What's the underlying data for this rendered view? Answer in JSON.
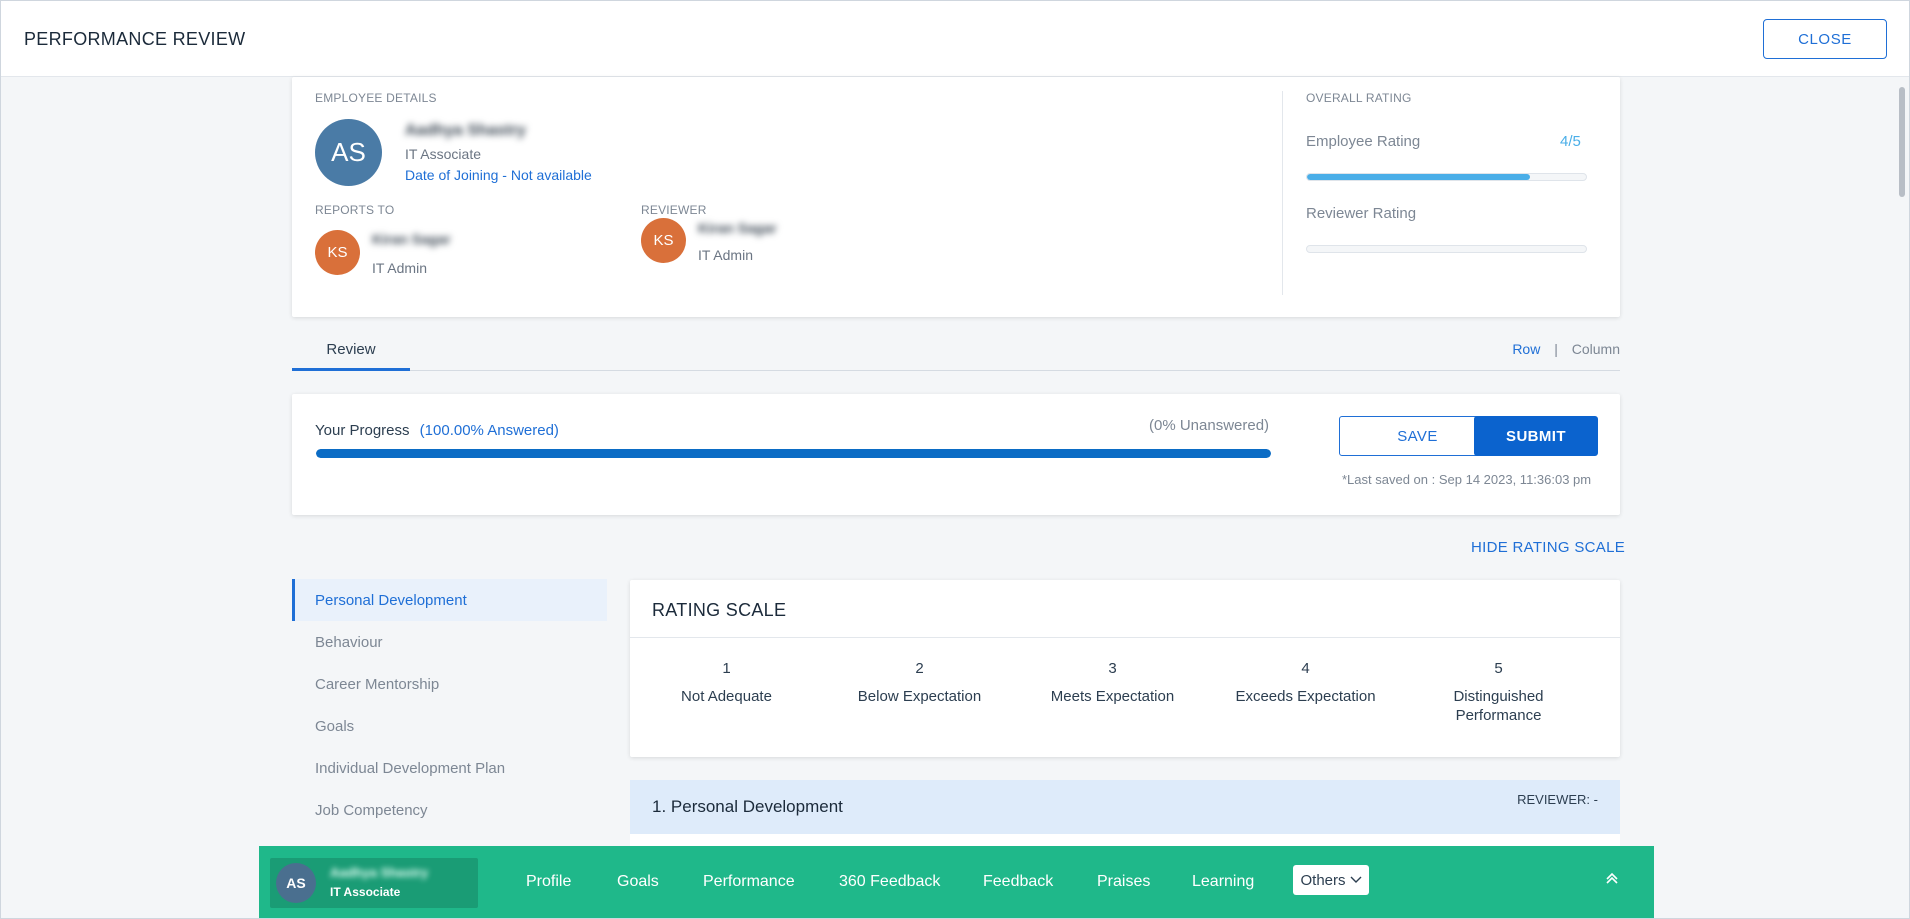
{
  "modal": {
    "title": "PERFORMANCE REVIEW",
    "close_label": "CLOSE"
  },
  "employee": {
    "section_label": "EMPLOYEE DETAILS",
    "initials": "AS",
    "name": "Aadhya Shastry",
    "role": "IT Associate",
    "doj_label": "Date of Joining",
    "doj_sep": " - ",
    "doj_value": "Not available",
    "reports_to": {
      "label": "REPORTS TO",
      "initials": "KS",
      "name": "Kiran Sagar",
      "role": "IT Admin"
    },
    "reviewer": {
      "label": "REVIEWER",
      "initials": "KS",
      "name": "Kiran Sagar",
      "role": "IT Admin"
    }
  },
  "overall_rating": {
    "label": "OVERALL RATING",
    "employee_label": "Employee Rating",
    "employee_value": "4/5",
    "employee_fraction": 0.8,
    "reviewer_label": "Reviewer Rating",
    "reviewer_fraction": 0
  },
  "tabs": {
    "review": "Review",
    "row": "Row",
    "sep": "|",
    "column": "Column"
  },
  "progress": {
    "label": "Your Progress",
    "answered": "(100.00% Answered)",
    "unanswered": "(0% Unanswered)",
    "fraction": 1.0,
    "save_label": "SAVE",
    "submit_label": "SUBMIT",
    "last_saved": "*Last saved on : Sep 14 2023, 11:36:03 pm"
  },
  "hide_scale_label": "HIDE RATING SCALE",
  "sections": [
    "Personal Development",
    "Behaviour",
    "Career Mentorship",
    "Goals",
    "Individual Development Plan",
    "Job Competency"
  ],
  "rating_scale": {
    "title": "RATING SCALE",
    "items": [
      {
        "num": "1",
        "label": "Not Adequate"
      },
      {
        "num": "2",
        "label": "Below Expectation"
      },
      {
        "num": "3",
        "label": "Meets Expectation"
      },
      {
        "num": "4",
        "label": "Exceeds Expectation"
      },
      {
        "num": "5",
        "label": "Distinguished Performance"
      }
    ]
  },
  "current_section": {
    "title": "1. Personal Development",
    "reviewer": "REVIEWER: -"
  },
  "bottom_bar": {
    "initials": "AS",
    "name": "Aadhya Shastry",
    "role": "IT Associate",
    "links": [
      "Profile",
      "Goals",
      "Performance",
      "360 Feedback",
      "Feedback",
      "Praises",
      "Learning"
    ],
    "others_label": "Others"
  },
  "colors": {
    "accent": "#1f6fd6",
    "bottom_bar": "#1fb88a",
    "avatar_blue": "#4a7ba6",
    "avatar_orange": "#d9703a"
  }
}
